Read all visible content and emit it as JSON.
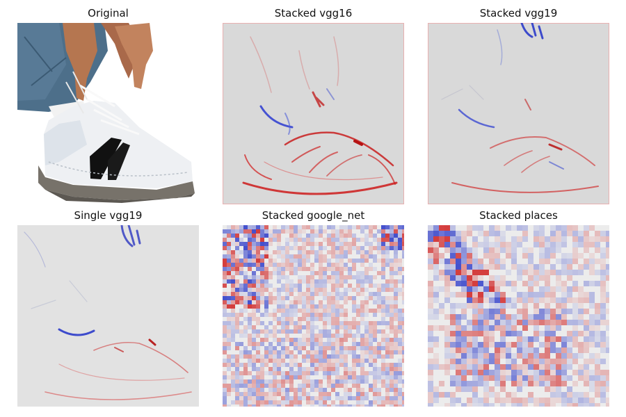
{
  "panels": [
    {
      "title": "Original",
      "icon": "sneaker-photo"
    },
    {
      "title": "Stacked vgg16",
      "icon": "saliency-map-smooth"
    },
    {
      "title": "Stacked vgg19",
      "icon": "saliency-map-smooth"
    },
    {
      "title": "Single vgg19",
      "icon": "saliency-map-smooth"
    },
    {
      "title": "Stacked google_net",
      "icon": "saliency-map-noisy"
    },
    {
      "title": "Stacked places",
      "icon": "saliency-map-blocky"
    }
  ],
  "colors": {
    "background": "#d9d9d9",
    "positive": "#cc1a1a",
    "negative": "#2a3ad0",
    "neutral": "#ececec"
  }
}
